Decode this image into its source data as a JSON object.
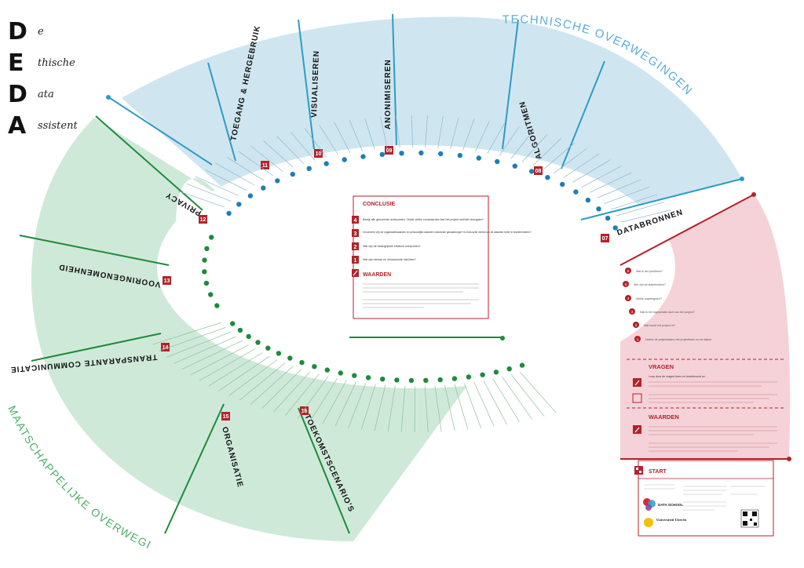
{
  "acronym": [
    {
      "letter": "D",
      "rest": "e"
    },
    {
      "letter": "E",
      "rest": "thische"
    },
    {
      "letter": "D",
      "rest": "ata"
    },
    {
      "letter": "A",
      "rest": "ssistent"
    }
  ],
  "arc_labels": {
    "technical": "TECHNISCHE OVERWEGINGEN",
    "societal": "MAATSCHAPPELIJKE OVERWEGINGEN"
  },
  "colors": {
    "technical": "#cfe6f0",
    "technical_line": "#2e9bc6",
    "societal": "#cfe9d9",
    "societal_line": "#1e8a3c",
    "start": "#f5d2d8",
    "accent": "#b4222b"
  },
  "sections": [
    {
      "id": "toegang",
      "label": "TOEGANG & HERGEBRUIK",
      "number": "11",
      "group": "technical"
    },
    {
      "id": "visualiseren",
      "label": "VISUALISEREN",
      "number": "10",
      "group": "technical"
    },
    {
      "id": "anonimiseren",
      "label": "ANONIMISEREN",
      "number": "09",
      "group": "technical"
    },
    {
      "id": "algoritmen",
      "label": "ALGORITMEN",
      "number": "08",
      "group": "technical"
    },
    {
      "id": "databronnen",
      "label": "DATABRONNEN",
      "number": "07",
      "group": "technical"
    },
    {
      "id": "privacy",
      "label": "PRIVACY",
      "number": "12",
      "group": "societal"
    },
    {
      "id": "vooringenomenheid",
      "label": "VOORINGENOMENHEID",
      "number": "13",
      "group": "societal"
    },
    {
      "id": "transparante",
      "label": "TRANSPARANTE COMMUNICATIE",
      "number": "14",
      "group": "societal"
    },
    {
      "id": "organisatie",
      "label": "ORGANISATIE",
      "number": "15",
      "group": "societal"
    },
    {
      "id": "toekomst",
      "label": "TOEKOMSTSCENARIO'S",
      "number": "16",
      "group": "societal"
    }
  ],
  "conclusie": {
    "title": "CONCLUSIE",
    "items": [
      {
        "num": "4",
        "text": "Bekijk alle genoemde actiepunten. Onder welke voorwaarden kan het project wel/niet doorgaan?"
      },
      {
        "num": "3",
        "text": "In hoeverre zijn de organisatiewaarden en persoonlijke waarden voldoende gewaarborgd? Is extra actie vereist om de waarden beter te implementeren?"
      },
      {
        "num": "2",
        "text": "Wat zijn de belangrijkste ethische knelpunten?"
      },
      {
        "num": "1",
        "text": "Wat zijn nieuwe en verrassende inzichten?"
      }
    ],
    "waarden_title": "WAARDEN"
  },
  "start_panel": {
    "vragen_title": "VRAGEN",
    "vragen_text": "Loop door de vragen heen en beantwoord ze.",
    "waarden_title": "WAARDEN",
    "start_label": "START",
    "questions": [
      {
        "num": "6",
        "text": "Wat is het probleem?"
      },
      {
        "num": "5",
        "text": "Wie zijn de stakeholders?"
      },
      {
        "num": "4",
        "text": "Welke maatregelen?"
      },
      {
        "num": "3",
        "text": "Wat is het ingeschatte doel van het project?"
      },
      {
        "num": "2",
        "text": "Wat houdt het project in?"
      },
      {
        "num": "1",
        "text": "Noteer de projectnaam, het projectteam en de datum."
      }
    ],
    "logo_data_school": "DATA SCHOOL",
    "logo_uu": "Universiteit Utrecht"
  }
}
